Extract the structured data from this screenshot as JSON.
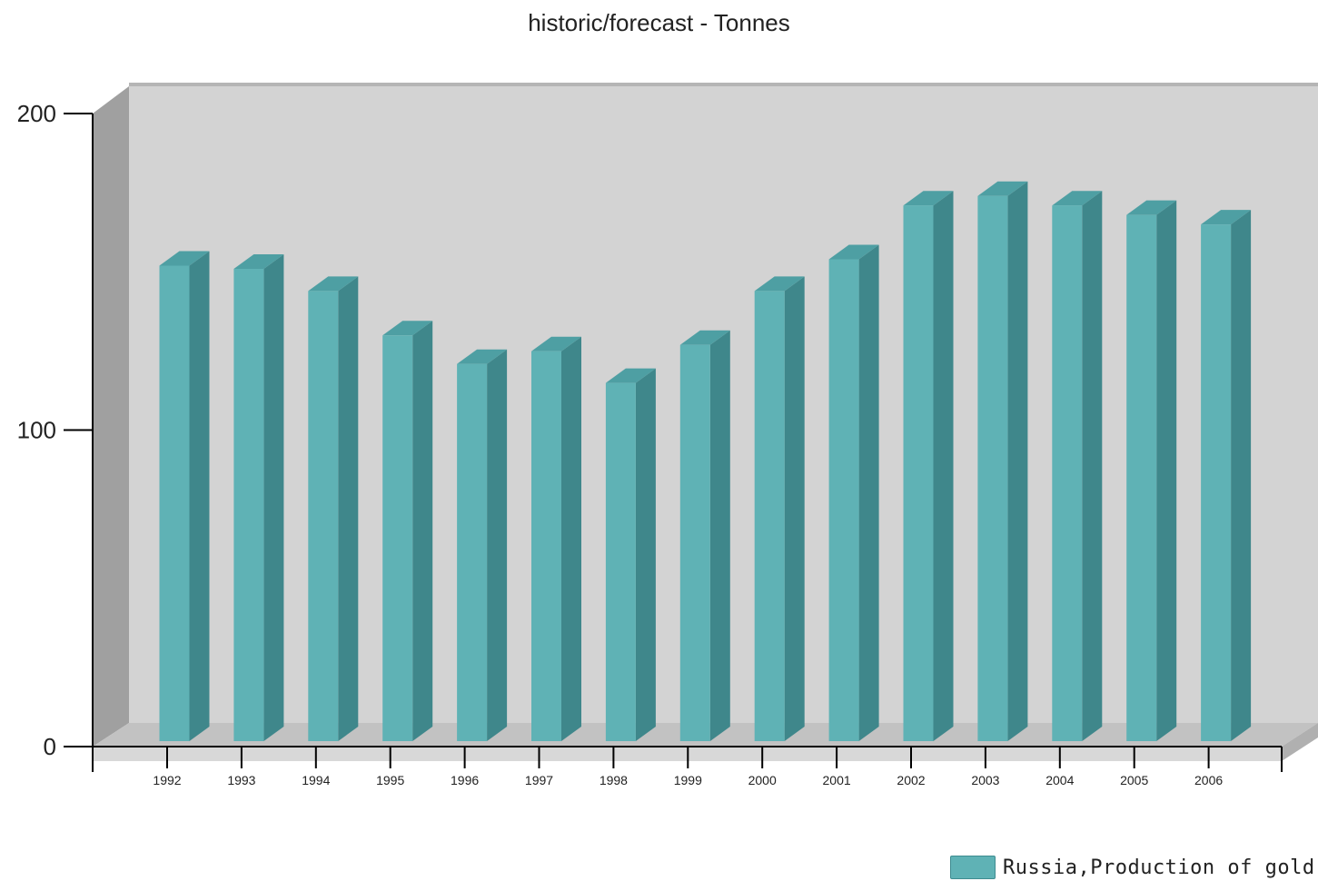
{
  "chart_data": {
    "type": "bar",
    "title": "historic/forecast - Tonnes",
    "categories": [
      "1992",
      "1993",
      "1994",
      "1995",
      "1996",
      "1997",
      "1998",
      "1999",
      "2000",
      "2001",
      "2002",
      "2003",
      "2004",
      "2005",
      "2006"
    ],
    "series": [
      {
        "name": "Russia,Production of gold",
        "values": [
          150,
          149,
          142,
          128,
          119,
          123,
          113,
          125,
          142,
          152,
          169,
          172,
          169,
          166,
          163
        ]
      }
    ],
    "ylim": [
      0,
      200
    ],
    "yticks": [
      "0",
      "100",
      "200"
    ],
    "xlabel": "",
    "ylabel": "",
    "legend_position": "bottom-right",
    "grid": false,
    "colors": {
      "bar_front": "#5fb2b5",
      "bar_side": "#3f878b",
      "bar_top": "#4e9fa3",
      "back_wall": "#d3d3d3",
      "side_wall": "#a0a0a0",
      "floor": "#c2c2c2"
    }
  }
}
